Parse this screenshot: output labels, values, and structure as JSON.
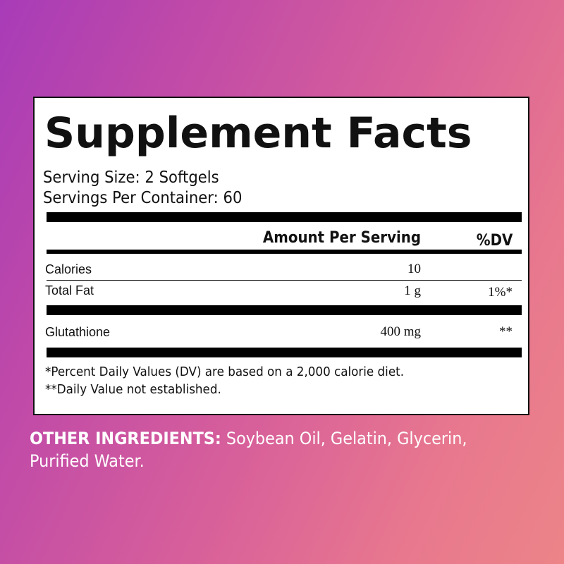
{
  "label": {
    "title": "Supplement Facts",
    "serving_size": "Serving Size: 2 Softgels",
    "servings_per_container": "Servings Per Container: 60",
    "header_amount": "Amount Per Serving",
    "header_dv": "%DV",
    "rows": [
      {
        "name": "Calories",
        "amount": "10",
        "dv": ""
      },
      {
        "name": "Total Fat",
        "amount": "1 g",
        "dv": "1%*"
      },
      {
        "name": "Glutathione",
        "amount": "400 mg",
        "dv": "**"
      }
    ],
    "footnotes": [
      "*Percent Daily Values (DV) are based on a 2,000 calorie diet.",
      "**Daily Value not established."
    ]
  },
  "other_ingredients": {
    "heading": "OTHER INGREDIENTS:",
    "text": " Soybean Oil, Gelatin, Glycerin, Purified Water."
  },
  "colors": {
    "background_left": "#a83cb8",
    "background_right": "#ec8488",
    "label_bg": "#ffffff",
    "text": "#111111"
  }
}
